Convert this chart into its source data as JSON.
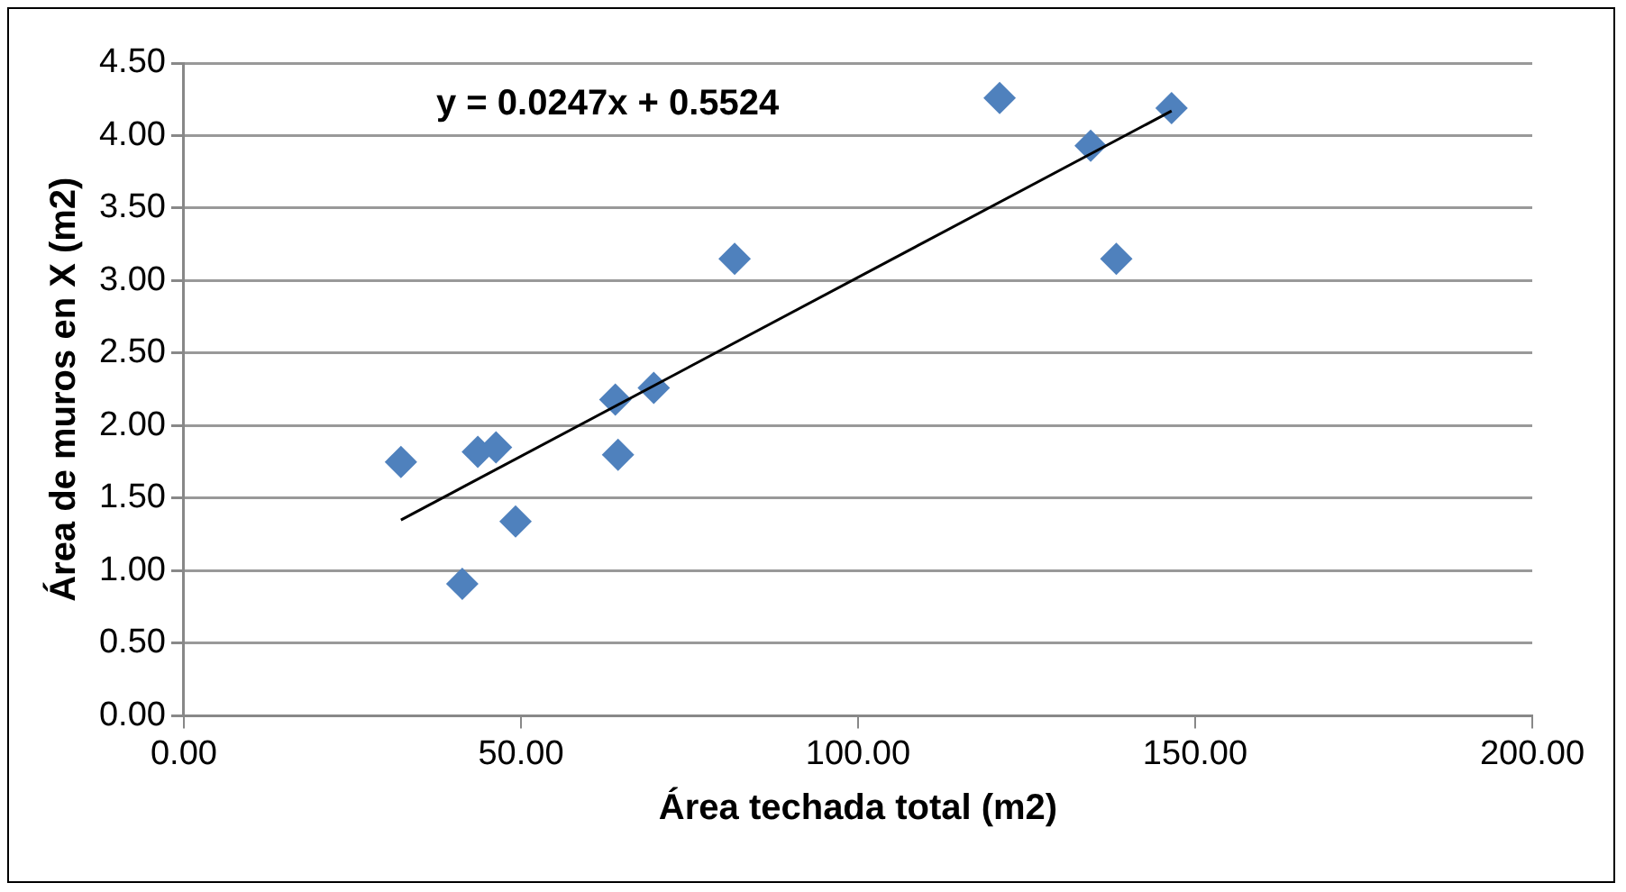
{
  "chart_data": {
    "type": "scatter",
    "xlabel": "Área techada total (m2)",
    "ylabel": "Área de muros en X (m2)",
    "x": [
      32.2,
      41.3,
      43.6,
      46.3,
      49.2,
      64.0,
      64.4,
      69.7,
      81.7,
      121.0,
      134.5,
      138.3,
      146.5
    ],
    "series": [
      {
        "color": "#4f81bd",
        "values": [
          1.75,
          0.91,
          1.82,
          1.85,
          1.34,
          2.18,
          1.8,
          2.26,
          3.15,
          4.26,
          3.93,
          3.15,
          4.19
        ]
      },
      {
        "type": "line",
        "color": "#000000",
        "marker": "none",
        "x": [
          32.2,
          146.5
        ],
        "values": [
          1.35,
          4.17
        ]
      }
    ],
    "marker": "diamond",
    "grid": "y",
    "legend": false,
    "xlim": [
      0,
      200
    ],
    "xticks": [
      {
        "value": 0,
        "label": "0.00"
      },
      {
        "value": 50,
        "label": "50.00"
      },
      {
        "value": 100,
        "label": "100.00"
      },
      {
        "value": 150,
        "label": "150.00"
      },
      {
        "value": 200,
        "label": "200.00"
      }
    ],
    "ylim": [
      0,
      4.5
    ],
    "yticks": [
      {
        "value": 0,
        "label": "0.00"
      },
      {
        "value": 0.5,
        "label": "0.50"
      },
      {
        "value": 1,
        "label": "1.00"
      },
      {
        "value": 1.5,
        "label": "1.50"
      },
      {
        "value": 2,
        "label": "2.00"
      },
      {
        "value": 2.5,
        "label": "2.50"
      },
      {
        "value": 3,
        "label": "3.00"
      },
      {
        "value": 3.5,
        "label": "3.50"
      },
      {
        "value": 4,
        "label": "4.00"
      },
      {
        "value": 4.5,
        "label": "4.50"
      }
    ],
    "annotations": [
      "y = 0.0247x + 0.5524"
    ]
  }
}
